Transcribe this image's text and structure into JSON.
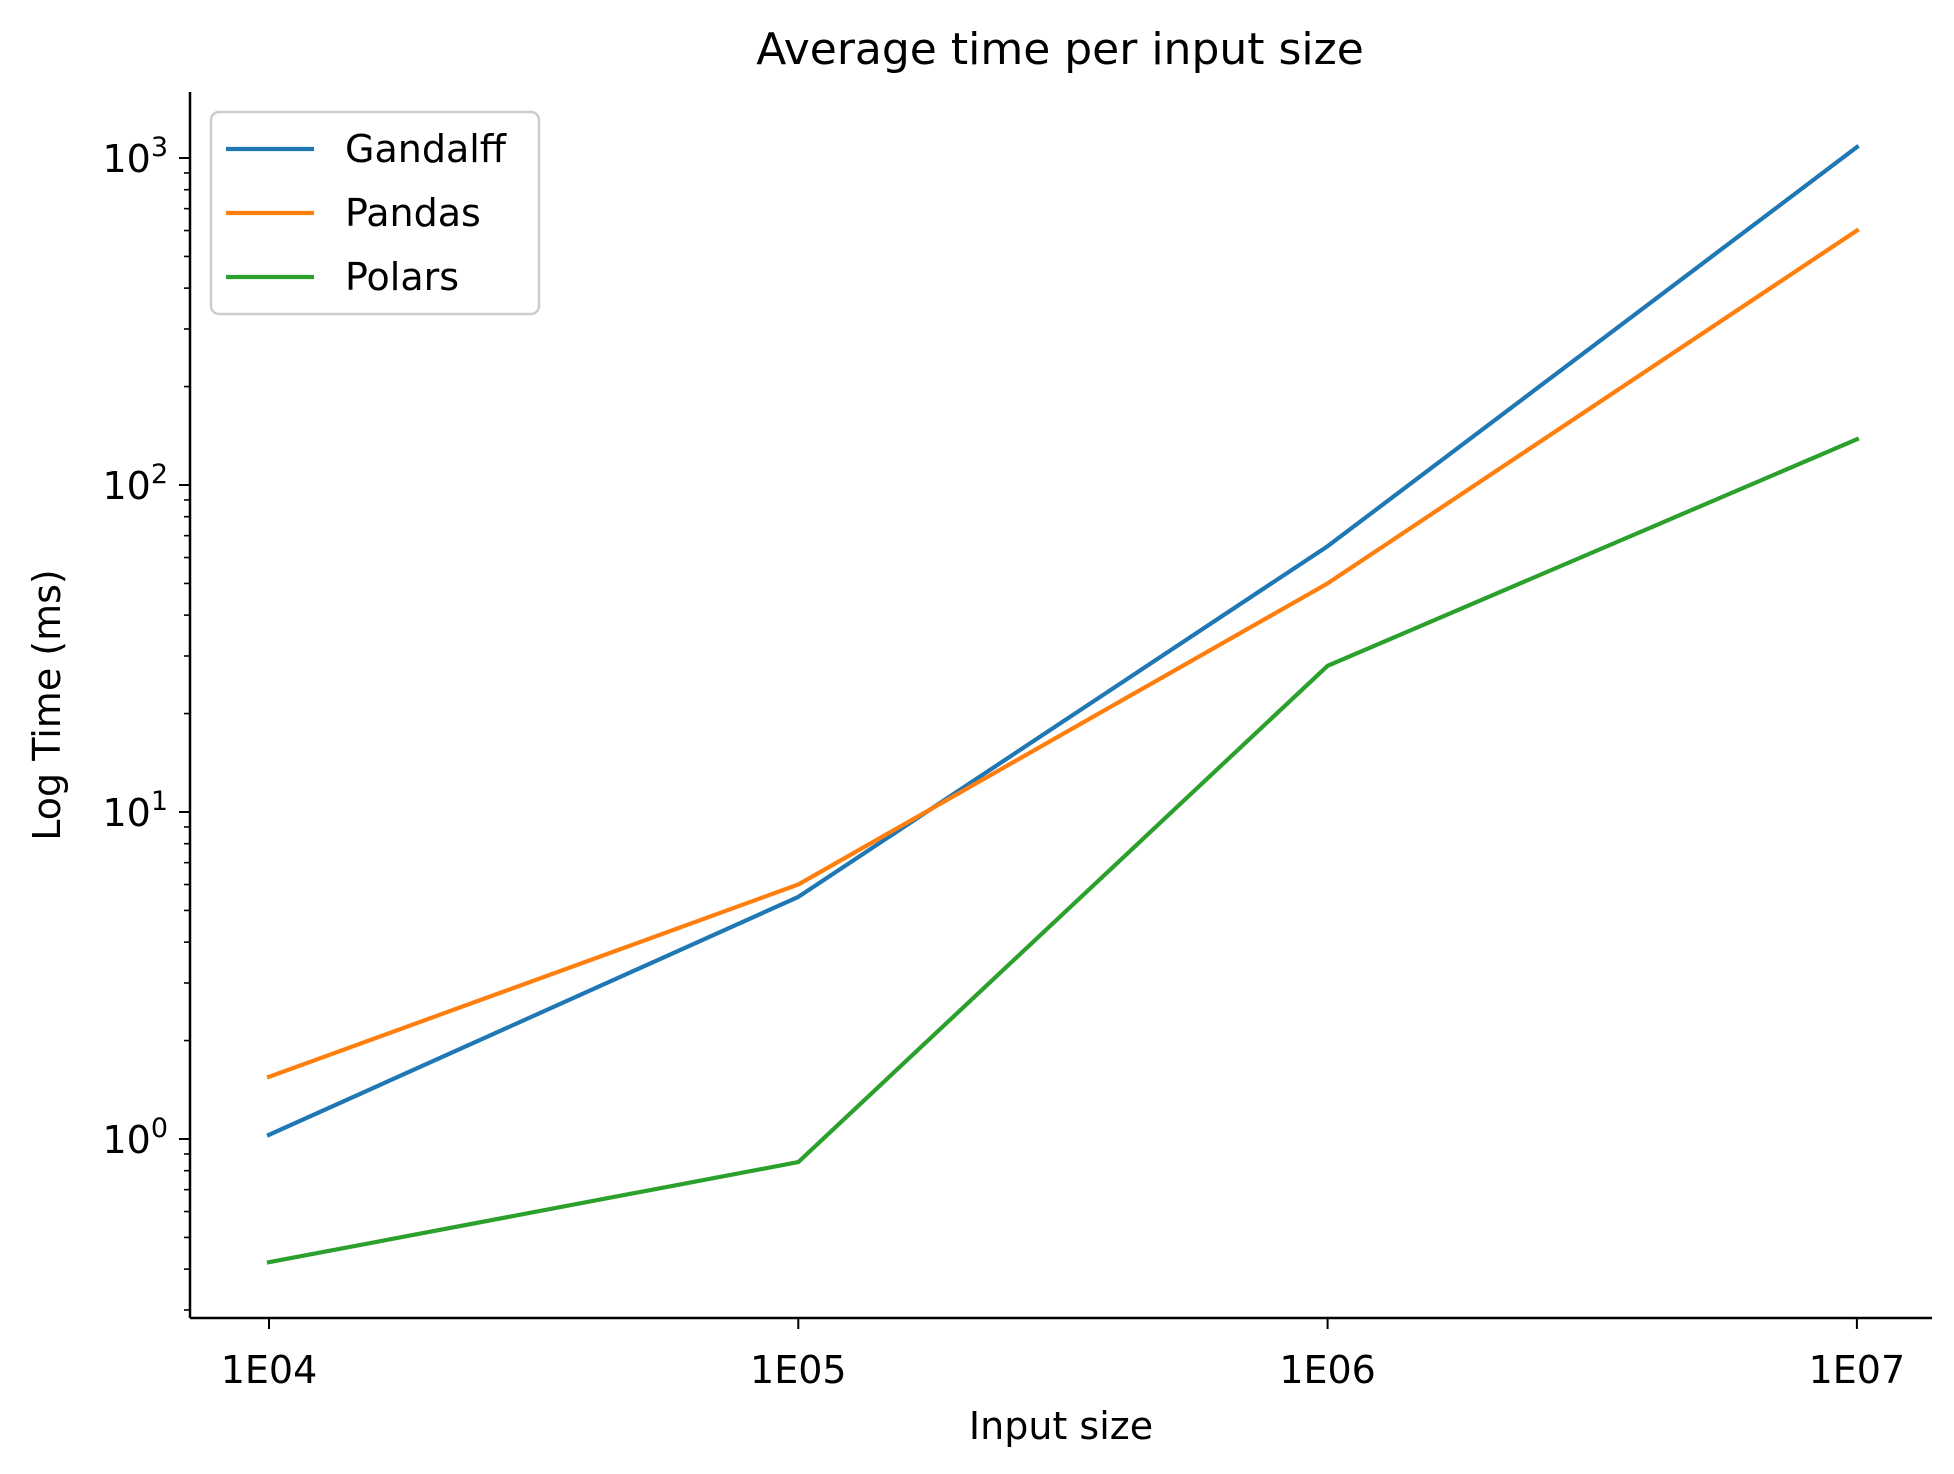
{
  "chart_data": {
    "type": "line",
    "title": "Average time per input size",
    "xlabel": "Input size",
    "ylabel": "Log Time (ms)",
    "x_scale": "categorical",
    "y_scale": "log",
    "categories": [
      "1E04",
      "1E05",
      "1E06",
      "1E07"
    ],
    "ylim": [
      0.3,
      1600
    ],
    "y_ticks": [
      {
        "value": 1,
        "base": "10",
        "exp": "0"
      },
      {
        "value": 10,
        "base": "10",
        "exp": "1"
      },
      {
        "value": 100,
        "base": "10",
        "exp": "2"
      },
      {
        "value": 1000,
        "base": "10",
        "exp": "3"
      }
    ],
    "series": [
      {
        "name": "Gandalff",
        "color": "#1f77b4",
        "values": [
          1.03,
          5.5,
          65,
          1080
        ]
      },
      {
        "name": "Pandas",
        "color": "#ff7f0e",
        "values": [
          1.55,
          6.0,
          50,
          600
        ]
      },
      {
        "name": "Polars",
        "color": "#2ca02c",
        "values": [
          0.42,
          0.85,
          28,
          138
        ]
      }
    ],
    "legend": "top-left",
    "grid": false
  }
}
